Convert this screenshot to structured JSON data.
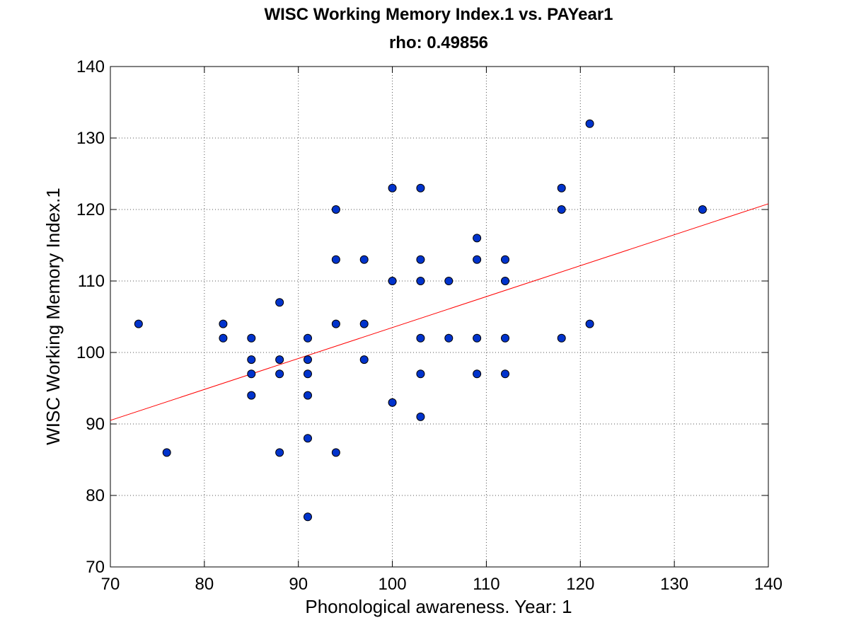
{
  "chart_data": {
    "type": "scatter",
    "title": "WISC Working Memory Index.1 vs. PAYear1",
    "subtitle": "rho: 0.49856",
    "xlabel": "Phonological awareness. Year: 1",
    "ylabel": "WISC Working Memory Index.1",
    "xlim": [
      70,
      140
    ],
    "ylim": [
      70,
      140
    ],
    "xticks": [
      "70",
      "80",
      "90",
      "100",
      "110",
      "120",
      "130",
      "140"
    ],
    "yticks": [
      "70",
      "80",
      "90",
      "100",
      "110",
      "120",
      "130",
      "140"
    ],
    "grid": true,
    "grid_style": "dotted",
    "marker_color": "#0033cc",
    "fit_line_color": "#ff0000",
    "points": [
      [
        73,
        104
      ],
      [
        76,
        86
      ],
      [
        82,
        104
      ],
      [
        82,
        102
      ],
      [
        85,
        102
      ],
      [
        85,
        99
      ],
      [
        85,
        97
      ],
      [
        85,
        94
      ],
      [
        88,
        107
      ],
      [
        88,
        99
      ],
      [
        88,
        97
      ],
      [
        88,
        86
      ],
      [
        91,
        102
      ],
      [
        91,
        99
      ],
      [
        91,
        97
      ],
      [
        91,
        94
      ],
      [
        91,
        88
      ],
      [
        91,
        77
      ],
      [
        94,
        120
      ],
      [
        94,
        113
      ],
      [
        94,
        104
      ],
      [
        94,
        86
      ],
      [
        97,
        113
      ],
      [
        97,
        104
      ],
      [
        97,
        99
      ],
      [
        100,
        123
      ],
      [
        100,
        110
      ],
      [
        100,
        93
      ],
      [
        103,
        123
      ],
      [
        103,
        113
      ],
      [
        103,
        110
      ],
      [
        103,
        102
      ],
      [
        103,
        97
      ],
      [
        103,
        91
      ],
      [
        106,
        110
      ],
      [
        106,
        102
      ],
      [
        109,
        116
      ],
      [
        109,
        113
      ],
      [
        109,
        102
      ],
      [
        109,
        97
      ],
      [
        112,
        113
      ],
      [
        112,
        110
      ],
      [
        112,
        102
      ],
      [
        112,
        97
      ],
      [
        118,
        123
      ],
      [
        118,
        120
      ],
      [
        118,
        102
      ],
      [
        121,
        132
      ],
      [
        121,
        104
      ],
      [
        133,
        120
      ]
    ],
    "fit_line": {
      "x": [
        70,
        140
      ],
      "y": [
        90.5,
        120.8
      ]
    }
  }
}
